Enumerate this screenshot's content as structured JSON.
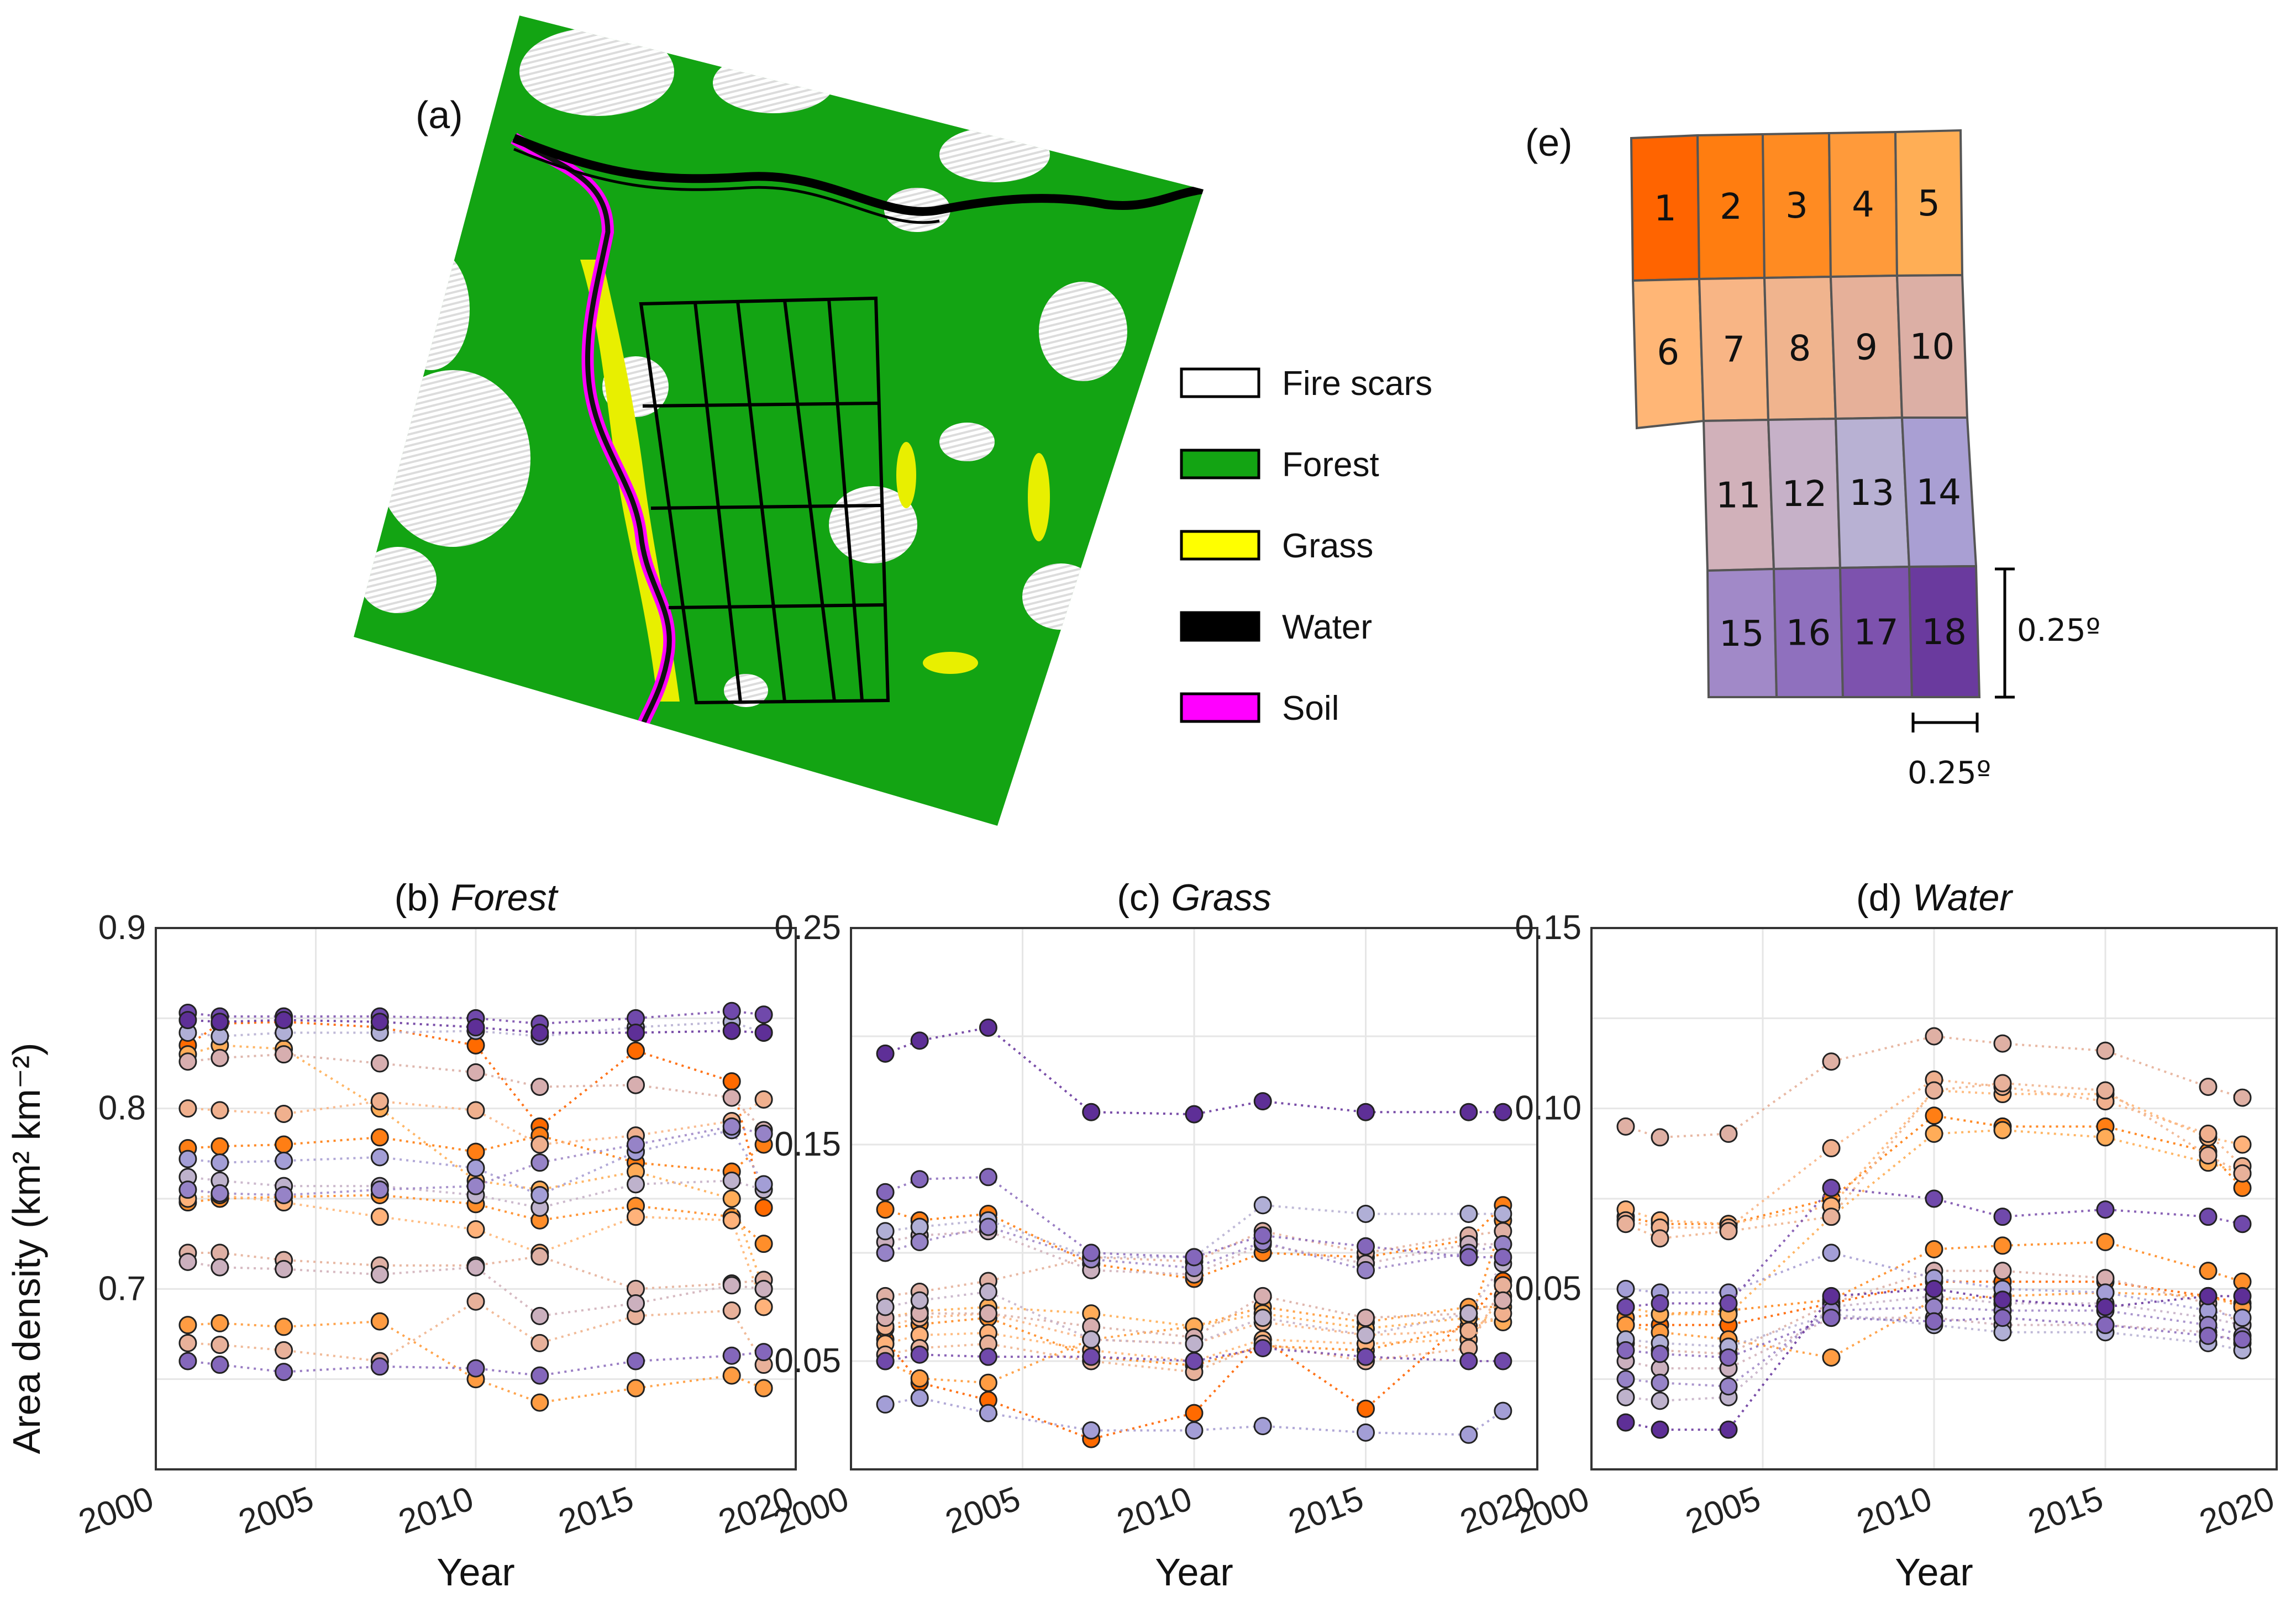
{
  "map": {
    "label": "(a)",
    "legend": [
      {
        "label": "Fire scars",
        "color": "#ffffff"
      },
      {
        "label": "Forest",
        "color": "#13a413"
      },
      {
        "label": "Grass",
        "color": "#ffff00"
      },
      {
        "label": "Water",
        "color": "#000000"
      },
      {
        "label": "Soil",
        "color": "#ff00ff"
      }
    ]
  },
  "grid": {
    "label": "(e)",
    "cells": [
      {
        "n": "1",
        "color": "#ff6400"
      },
      {
        "n": "2",
        "color": "#ff7d10"
      },
      {
        "n": "3",
        "color": "#ff8b22"
      },
      {
        "n": "4",
        "color": "#ff9a3a"
      },
      {
        "n": "5",
        "color": "#ffae55"
      },
      {
        "n": "6",
        "color": "#ffb676"
      },
      {
        "n": "7",
        "color": "#f8b585"
      },
      {
        "n": "8",
        "color": "#f0b48e"
      },
      {
        "n": "9",
        "color": "#e6b099"
      },
      {
        "n": "10",
        "color": "#dcafa5"
      },
      {
        "n": "11",
        "color": "#d1b1ba"
      },
      {
        "n": "12",
        "color": "#c6b1c8"
      },
      {
        "n": "13",
        "color": "#b8b1d3"
      },
      {
        "n": "14",
        "color": "#a99fd3"
      },
      {
        "n": "15",
        "color": "#a189c8"
      },
      {
        "n": "16",
        "color": "#8f70be"
      },
      {
        "n": "17",
        "color": "#7d52ae"
      },
      {
        "n": "18",
        "color": "#6a3a9e"
      }
    ],
    "scale_x": "0.25º",
    "scale_y": "0.25º"
  },
  "shared": {
    "ylabel": "Area density (km² km⁻²)",
    "xlabel": "Year",
    "years": [
      2001,
      2002,
      2004,
      2007,
      2010,
      2012,
      2015,
      2018,
      2019
    ]
  },
  "chart_data": [
    {
      "type": "scatter",
      "panel": "(b)",
      "title": "Forest",
      "xlabel": "Year",
      "ylabel": "Area density (km² km⁻²)",
      "xlim": [
        2000,
        2020
      ],
      "ylim": [
        0.6,
        0.9
      ],
      "xticks": [
        "2000",
        "2005",
        "2010",
        "2015",
        "2020"
      ],
      "yticks": [
        "0.7",
        "0.8",
        "0.9"
      ],
      "grid": true,
      "series": [
        {
          "name": "1",
          "values": [
            0.835,
            0.847,
            0.848,
            0.845,
            0.835,
            0.79,
            0.832,
            0.815,
            0.745
          ]
        },
        {
          "name": "2",
          "values": [
            0.778,
            0.779,
            0.78,
            0.784,
            0.776,
            0.785,
            0.77,
            0.765,
            0.78
          ]
        },
        {
          "name": "3",
          "values": [
            0.748,
            0.75,
            0.751,
            0.752,
            0.747,
            0.738,
            0.746,
            0.74,
            0.725
          ]
        },
        {
          "name": "4",
          "values": [
            0.68,
            0.681,
            0.679,
            0.682,
            0.65,
            0.637,
            0.645,
            0.652,
            0.645
          ]
        },
        {
          "name": "5",
          "values": [
            0.83,
            0.835,
            0.833,
            0.8,
            0.76,
            0.755,
            0.765,
            0.75,
            0.7
          ]
        },
        {
          "name": "6",
          "values": [
            0.75,
            0.752,
            0.748,
            0.74,
            0.733,
            0.72,
            0.74,
            0.738,
            0.69
          ]
        },
        {
          "name": "7",
          "values": [
            0.8,
            0.799,
            0.797,
            0.804,
            0.799,
            0.78,
            0.785,
            0.793,
            0.805
          ]
        },
        {
          "name": "8",
          "values": [
            0.67,
            0.669,
            0.666,
            0.66,
            0.693,
            0.67,
            0.685,
            0.688,
            0.658
          ]
        },
        {
          "name": "9",
          "values": [
            0.72,
            0.72,
            0.716,
            0.713,
            0.713,
            0.718,
            0.7,
            0.703,
            0.705
          ]
        },
        {
          "name": "10",
          "values": [
            0.826,
            0.828,
            0.83,
            0.825,
            0.82,
            0.812,
            0.813,
            0.806,
            0.788
          ]
        },
        {
          "name": "11",
          "values": [
            0.715,
            0.712,
            0.711,
            0.708,
            0.712,
            0.685,
            0.692,
            0.702,
            0.7
          ]
        },
        {
          "name": "12",
          "values": [
            0.762,
            0.76,
            0.757,
            0.757,
            0.752,
            0.745,
            0.758,
            0.76,
            0.755
          ]
        },
        {
          "name": "13",
          "values": [
            0.842,
            0.84,
            0.842,
            0.842,
            0.843,
            0.84,
            0.845,
            0.848,
            0.842
          ]
        },
        {
          "name": "14",
          "values": [
            0.772,
            0.77,
            0.771,
            0.773,
            0.767,
            0.752,
            0.776,
            0.788,
            0.758
          ]
        },
        {
          "name": "15",
          "values": [
            0.755,
            0.753,
            0.752,
            0.755,
            0.757,
            0.77,
            0.78,
            0.79,
            0.786
          ]
        },
        {
          "name": "16",
          "values": [
            0.66,
            0.658,
            0.654,
            0.657,
            0.656,
            0.652,
            0.66,
            0.663,
            0.665
          ]
        },
        {
          "name": "17",
          "values": [
            0.853,
            0.851,
            0.851,
            0.851,
            0.85,
            0.847,
            0.85,
            0.854,
            0.852
          ]
        },
        {
          "name": "18",
          "values": [
            0.849,
            0.848,
            0.849,
            0.848,
            0.845,
            0.842,
            0.842,
            0.843,
            0.842
          ]
        }
      ]
    },
    {
      "type": "scatter",
      "panel": "(c)",
      "title": "Grass",
      "xlabel": "Year",
      "ylabel": "",
      "xlim": [
        2000,
        2020
      ],
      "ylim": [
        0.0,
        0.25
      ],
      "xticks": [
        "2000",
        "2005",
        "2010",
        "2015",
        "2020"
      ],
      "yticks": [
        "0.05",
        "0.15",
        "0.25"
      ],
      "grid": true,
      "series": [
        {
          "name": "1",
          "values": [
            0.06,
            0.04,
            0.032,
            0.014,
            0.026,
            0.06,
            0.028,
            0.07,
            0.087
          ]
        },
        {
          "name": "2",
          "values": [
            0.12,
            0.115,
            0.118,
            0.095,
            0.088,
            0.1,
            0.098,
            0.106,
            0.122
          ]
        },
        {
          "name": "3",
          "values": [
            0.065,
            0.067,
            0.07,
            0.052,
            0.048,
            0.057,
            0.055,
            0.066,
            0.115
          ]
        },
        {
          "name": "4",
          "values": [
            0.05,
            0.042,
            0.04,
            0.06,
            0.066,
            0.075,
            0.068,
            0.075,
            0.075
          ]
        },
        {
          "name": "5",
          "values": [
            0.07,
            0.073,
            0.075,
            0.072,
            0.066,
            0.072,
            0.065,
            0.07,
            0.068
          ]
        },
        {
          "name": "6",
          "values": [
            0.058,
            0.062,
            0.063,
            0.055,
            0.05,
            0.06,
            0.058,
            0.06,
            0.08
          ]
        },
        {
          "name": "7",
          "values": [
            0.066,
            0.07,
            0.072,
            0.06,
            0.058,
            0.068,
            0.062,
            0.064,
            0.072
          ]
        },
        {
          "name": "8",
          "values": [
            0.053,
            0.056,
            0.058,
            0.05,
            0.045,
            0.058,
            0.05,
            0.056,
            0.085
          ]
        },
        {
          "name": "9",
          "values": [
            0.08,
            0.082,
            0.087,
            0.098,
            0.096,
            0.11,
            0.1,
            0.108,
            0.11
          ]
        },
        {
          "name": "10",
          "values": [
            0.07,
            0.072,
            0.072,
            0.066,
            0.061,
            0.08,
            0.07,
            0.072,
            0.078
          ]
        },
        {
          "name": "11",
          "values": [
            0.105,
            0.108,
            0.11,
            0.092,
            0.09,
            0.104,
            0.095,
            0.104,
            0.104
          ]
        },
        {
          "name": "12",
          "values": [
            0.075,
            0.078,
            0.082,
            0.06,
            0.058,
            0.07,
            0.062,
            0.072,
            0.095
          ]
        },
        {
          "name": "13",
          "values": [
            0.11,
            0.112,
            0.115,
            0.098,
            0.098,
            0.122,
            0.118,
            0.118,
            0.118
          ]
        },
        {
          "name": "14",
          "values": [
            0.03,
            0.033,
            0.026,
            0.018,
            0.018,
            0.02,
            0.017,
            0.016,
            0.027
          ]
        },
        {
          "name": "15",
          "values": [
            0.1,
            0.105,
            0.112,
            0.097,
            0.093,
            0.105,
            0.092,
            0.1,
            0.104
          ]
        },
        {
          "name": "16",
          "values": [
            0.128,
            0.134,
            0.135,
            0.1,
            0.098,
            0.108,
            0.103,
            0.098,
            0.098
          ]
        },
        {
          "name": "17",
          "values": [
            0.05,
            0.053,
            0.052,
            0.052,
            0.05,
            0.056,
            0.052,
            0.05,
            0.05
          ]
        },
        {
          "name": "18",
          "values": [
            0.192,
            0.198,
            0.204,
            0.165,
            0.164,
            0.17,
            0.165,
            0.165,
            0.165
          ]
        }
      ]
    },
    {
      "type": "scatter",
      "panel": "(d)",
      "title": "Water",
      "xlabel": "Year",
      "ylabel": "",
      "xlim": [
        2000,
        2020
      ],
      "ylim": [
        0.0,
        0.15
      ],
      "xticks": [
        "2000",
        "2005",
        "2010",
        "2015",
        "2020"
      ],
      "yticks": [
        "0.05",
        "0.10",
        "0.15"
      ],
      "grid": true,
      "series": [
        {
          "name": "1",
          "values": [
            0.04,
            0.04,
            0.04,
            0.046,
            0.052,
            0.052,
            0.052,
            0.048,
            0.046
          ]
        },
        {
          "name": "2",
          "values": [
            0.07,
            0.068,
            0.068,
            0.075,
            0.098,
            0.095,
            0.095,
            0.088,
            0.078
          ]
        },
        {
          "name": "3",
          "values": [
            0.042,
            0.043,
            0.044,
            0.047,
            0.061,
            0.062,
            0.063,
            0.055,
            0.052
          ]
        },
        {
          "name": "4",
          "values": [
            0.04,
            0.038,
            0.036,
            0.031,
            0.047,
            0.048,
            0.049,
            0.048,
            0.045
          ]
        },
        {
          "name": "5",
          "values": [
            0.045,
            0.043,
            0.043,
            0.07,
            0.093,
            0.094,
            0.092,
            0.085,
            0.082
          ]
        },
        {
          "name": "6",
          "values": [
            0.072,
            0.069,
            0.068,
            0.073,
            0.105,
            0.104,
            0.104,
            0.092,
            0.09
          ]
        },
        {
          "name": "7",
          "values": [
            0.069,
            0.067,
            0.067,
            0.089,
            0.108,
            0.106,
            0.102,
            0.093,
            0.084
          ]
        },
        {
          "name": "8",
          "values": [
            0.068,
            0.064,
            0.066,
            0.07,
            0.105,
            0.107,
            0.105,
            0.087,
            0.082
          ]
        },
        {
          "name": "9",
          "values": [
            0.095,
            0.092,
            0.093,
            0.113,
            0.12,
            0.118,
            0.116,
            0.106,
            0.103
          ]
        },
        {
          "name": "10",
          "values": [
            0.035,
            0.033,
            0.032,
            0.046,
            0.055,
            0.055,
            0.053,
            0.046,
            0.04
          ]
        },
        {
          "name": "11",
          "values": [
            0.03,
            0.028,
            0.028,
            0.042,
            0.042,
            0.04,
            0.04,
            0.038,
            0.035
          ]
        },
        {
          "name": "12",
          "values": [
            0.02,
            0.019,
            0.02,
            0.045,
            0.048,
            0.046,
            0.046,
            0.042,
            0.04
          ]
        },
        {
          "name": "13",
          "values": [
            0.036,
            0.035,
            0.034,
            0.043,
            0.04,
            0.038,
            0.038,
            0.035,
            0.033
          ]
        },
        {
          "name": "14",
          "values": [
            0.05,
            0.049,
            0.049,
            0.06,
            0.053,
            0.05,
            0.049,
            0.044,
            0.042
          ]
        },
        {
          "name": "15",
          "values": [
            0.025,
            0.024,
            0.023,
            0.044,
            0.045,
            0.044,
            0.044,
            0.04,
            0.037
          ]
        },
        {
          "name": "16",
          "values": [
            0.033,
            0.032,
            0.031,
            0.042,
            0.041,
            0.042,
            0.04,
            0.037,
            0.036
          ]
        },
        {
          "name": "17",
          "values": [
            0.045,
            0.046,
            0.046,
            0.078,
            0.075,
            0.07,
            0.072,
            0.07,
            0.068
          ]
        },
        {
          "name": "18",
          "values": [
            0.013,
            0.011,
            0.011,
            0.048,
            0.05,
            0.047,
            0.045,
            0.048,
            0.048
          ]
        }
      ]
    }
  ]
}
